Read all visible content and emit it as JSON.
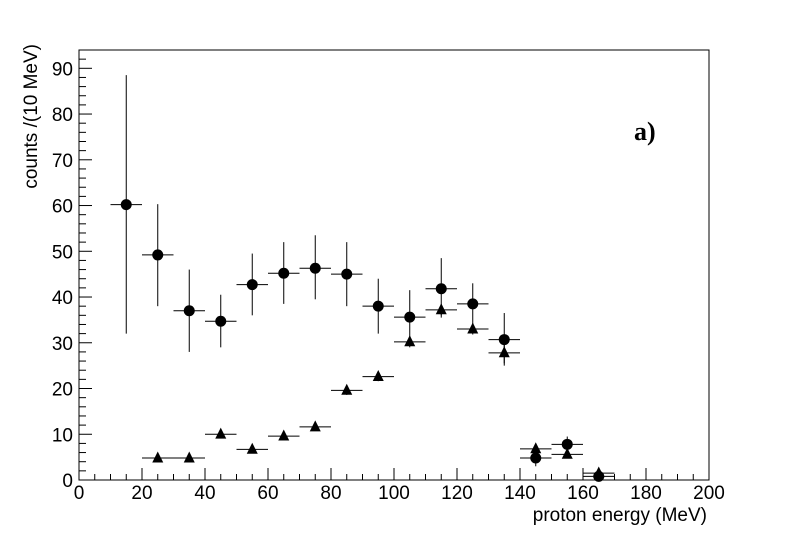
{
  "chart_data": {
    "type": "scatter",
    "title": "",
    "xlabel": "proton energy (MeV)",
    "ylabel": "counts /(10 MeV)",
    "annotation": "a)",
    "xlim": [
      0,
      200
    ],
    "ylim": [
      0,
      94
    ],
    "x_ticks": [
      0,
      20,
      40,
      60,
      80,
      100,
      120,
      140,
      160,
      180,
      200
    ],
    "y_ticks": [
      0,
      10,
      20,
      30,
      40,
      50,
      60,
      70,
      80,
      90
    ],
    "grid": false,
    "legend": "none",
    "series": [
      {
        "marker": "circle",
        "points": [
          {
            "x": 15,
            "y": 60.2,
            "xerr": 5,
            "ylo": 32.0,
            "yhi": 88.5
          },
          {
            "x": 25,
            "y": 49.2,
            "xerr": 5,
            "ylo": 38.0,
            "yhi": 60.3
          },
          {
            "x": 35,
            "y": 37.0,
            "xerr": 5,
            "ylo": 28.0,
            "yhi": 46.0
          },
          {
            "x": 45,
            "y": 34.7,
            "xerr": 5,
            "ylo": 29.0,
            "yhi": 40.5
          },
          {
            "x": 55,
            "y": 42.7,
            "xerr": 5,
            "ylo": 36.0,
            "yhi": 49.5
          },
          {
            "x": 65,
            "y": 45.2,
            "xerr": 5,
            "ylo": 38.5,
            "yhi": 52.0
          },
          {
            "x": 75,
            "y": 46.3,
            "xerr": 5,
            "ylo": 39.5,
            "yhi": 53.5
          },
          {
            "x": 85,
            "y": 45.0,
            "xerr": 5,
            "ylo": 38.0,
            "yhi": 52.0
          },
          {
            "x": 95,
            "y": 38.0,
            "xerr": 5,
            "ylo": 32.0,
            "yhi": 44.0
          },
          {
            "x": 105,
            "y": 35.6,
            "xerr": 5,
            "ylo": 30.0,
            "yhi": 41.5
          },
          {
            "x": 115,
            "y": 41.8,
            "xerr": 5,
            "ylo": 35.5,
            "yhi": 48.5
          },
          {
            "x": 125,
            "y": 38.5,
            "xerr": 5,
            "ylo": 34.0,
            "yhi": 43.0
          },
          {
            "x": 135,
            "y": 30.7,
            "xerr": 5,
            "ylo": 25.0,
            "yhi": 36.5
          },
          {
            "x": 145,
            "y": 4.8,
            "xerr": 5,
            "ylo": 3.0,
            "yhi": 6.8
          },
          {
            "x": 155,
            "y": 7.8,
            "xerr": 5,
            "ylo": 6.0,
            "yhi": 9.5
          },
          {
            "x": 165,
            "y": 0.8,
            "xerr": 5,
            "ylo": 0.0,
            "yhi": 1.8
          }
        ]
      },
      {
        "marker": "triangle",
        "points": [
          {
            "x": 25,
            "y": 4.8,
            "xerr": 5,
            "ylo": 4.2,
            "yhi": 5.4
          },
          {
            "x": 35,
            "y": 4.8,
            "xerr": 5,
            "ylo": 4.2,
            "yhi": 5.4
          },
          {
            "x": 45,
            "y": 10.0,
            "xerr": 5,
            "ylo": 9.2,
            "yhi": 10.8
          },
          {
            "x": 55,
            "y": 6.7,
            "xerr": 5,
            "ylo": 6.0,
            "yhi": 7.4
          },
          {
            "x": 65,
            "y": 9.6,
            "xerr": 5,
            "ylo": 8.8,
            "yhi": 10.4
          },
          {
            "x": 75,
            "y": 11.6,
            "xerr": 5,
            "ylo": 10.8,
            "yhi": 12.4
          },
          {
            "x": 85,
            "y": 19.6,
            "xerr": 5,
            "ylo": 18.6,
            "yhi": 20.6
          },
          {
            "x": 95,
            "y": 22.6,
            "xerr": 5,
            "ylo": 21.6,
            "yhi": 23.6
          },
          {
            "x": 105,
            "y": 30.2,
            "xerr": 5,
            "ylo": 29.0,
            "yhi": 31.4
          },
          {
            "x": 115,
            "y": 37.2,
            "xerr": 5,
            "ylo": 36.0,
            "yhi": 38.4
          },
          {
            "x": 125,
            "y": 33.0,
            "xerr": 5,
            "ylo": 31.8,
            "yhi": 34.2
          },
          {
            "x": 135,
            "y": 27.8,
            "xerr": 5,
            "ylo": 25.5,
            "yhi": 30.0
          },
          {
            "x": 145,
            "y": 6.8,
            "xerr": 5,
            "ylo": 5.8,
            "yhi": 7.8
          },
          {
            "x": 155,
            "y": 5.6,
            "xerr": 5,
            "ylo": 4.8,
            "yhi": 6.4
          },
          {
            "x": 165,
            "y": 1.5,
            "xerr": 5,
            "ylo": 1.0,
            "yhi": 2.0
          }
        ]
      }
    ]
  }
}
